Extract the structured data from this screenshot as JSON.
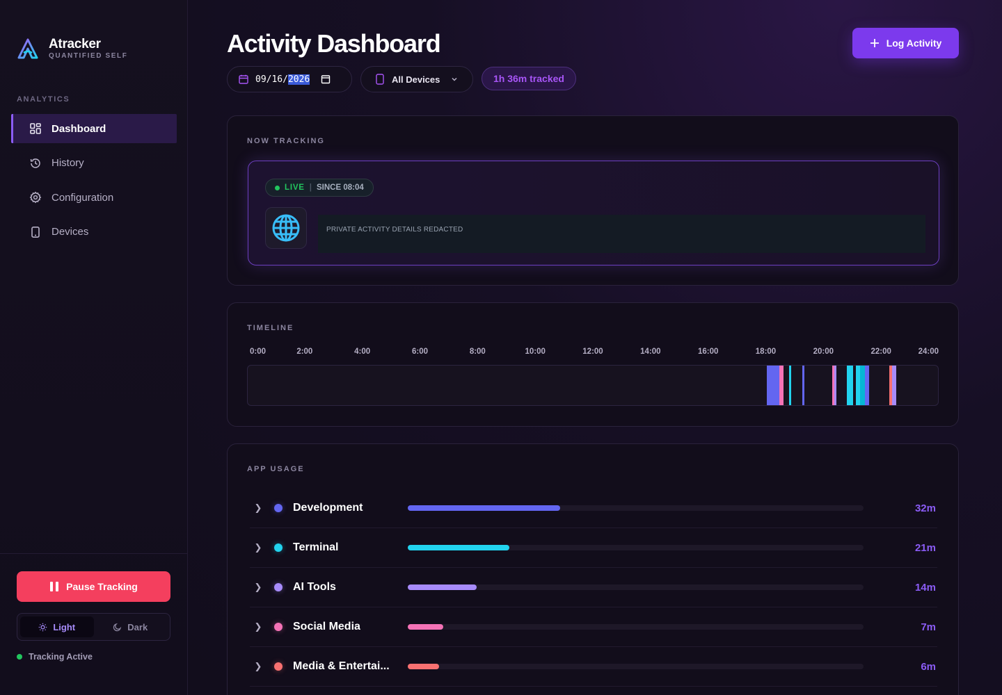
{
  "brand": {
    "name": "Atracker",
    "subtitle": "QUANTIFIED SELF"
  },
  "sidebar": {
    "section_label": "ANALYTICS",
    "items": [
      {
        "label": "Dashboard",
        "icon": "grid-icon",
        "active": true
      },
      {
        "label": "History",
        "icon": "history-icon",
        "active": false
      },
      {
        "label": "Configuration",
        "icon": "gear-icon",
        "active": false
      },
      {
        "label": "Devices",
        "icon": "device-icon",
        "active": false
      }
    ],
    "pause_label": "Pause Tracking",
    "theme": {
      "light_label": "Light",
      "dark_label": "Dark",
      "selected": "Light"
    },
    "status_label": "Tracking Active"
  },
  "header": {
    "title": "Activity Dashboard",
    "log_button_label": "Log Activity",
    "date": {
      "month": "09",
      "day": "16",
      "year": "2026"
    },
    "device_filter": "All Devices",
    "tracked_total": "1h 36m tracked"
  },
  "now_tracking": {
    "label": "NOW TRACKING",
    "live_label": "LIVE",
    "since_label": "SINCE 08:04",
    "app_icon": "globe-icon",
    "details": "PRIVATE ACTIVITY DETAILS REDACTED"
  },
  "timeline": {
    "label": "TIMELINE",
    "ticks": [
      "0:00",
      "2:00",
      "4:00",
      "6:00",
      "8:00",
      "10:00",
      "12:00",
      "14:00",
      "16:00",
      "18:00",
      "20:00",
      "22:00",
      "24:00"
    ],
    "segments": [
      {
        "start": 18.05,
        "end": 18.48,
        "color": "#6366f1"
      },
      {
        "start": 18.48,
        "end": 18.62,
        "color": "#f472b6"
      },
      {
        "start": 18.82,
        "end": 18.9,
        "color": "#22d3ee"
      },
      {
        "start": 19.28,
        "end": 19.36,
        "color": "#6366f1"
      },
      {
        "start": 20.32,
        "end": 20.4,
        "color": "#f472b6"
      },
      {
        "start": 20.4,
        "end": 20.48,
        "color": "#a78bfa"
      },
      {
        "start": 20.84,
        "end": 21.04,
        "color": "#22d3ee"
      },
      {
        "start": 21.14,
        "end": 21.3,
        "color": "#22d3ee"
      },
      {
        "start": 21.3,
        "end": 21.46,
        "color": "#06b6d4"
      },
      {
        "start": 21.46,
        "end": 21.6,
        "color": "#6366f1"
      },
      {
        "start": 22.3,
        "end": 22.4,
        "color": "#f87171"
      },
      {
        "start": 22.4,
        "end": 22.54,
        "color": "#a78bfa"
      }
    ]
  },
  "app_usage": {
    "label": "APP USAGE",
    "rows": [
      {
        "name": "Development",
        "color": "#6366f1",
        "fraction": 0.334,
        "time": "32m"
      },
      {
        "name": "Terminal",
        "color": "#22d3ee",
        "fraction": 0.223,
        "time": "21m"
      },
      {
        "name": "AI Tools",
        "color": "#a78bfa",
        "fraction": 0.151,
        "time": "14m"
      },
      {
        "name": "Social Media",
        "color": "#f472b6",
        "fraction": 0.078,
        "time": "7m"
      },
      {
        "name": "Media & Entertai...",
        "color": "#f87171",
        "fraction": 0.069,
        "time": "6m"
      }
    ]
  }
}
